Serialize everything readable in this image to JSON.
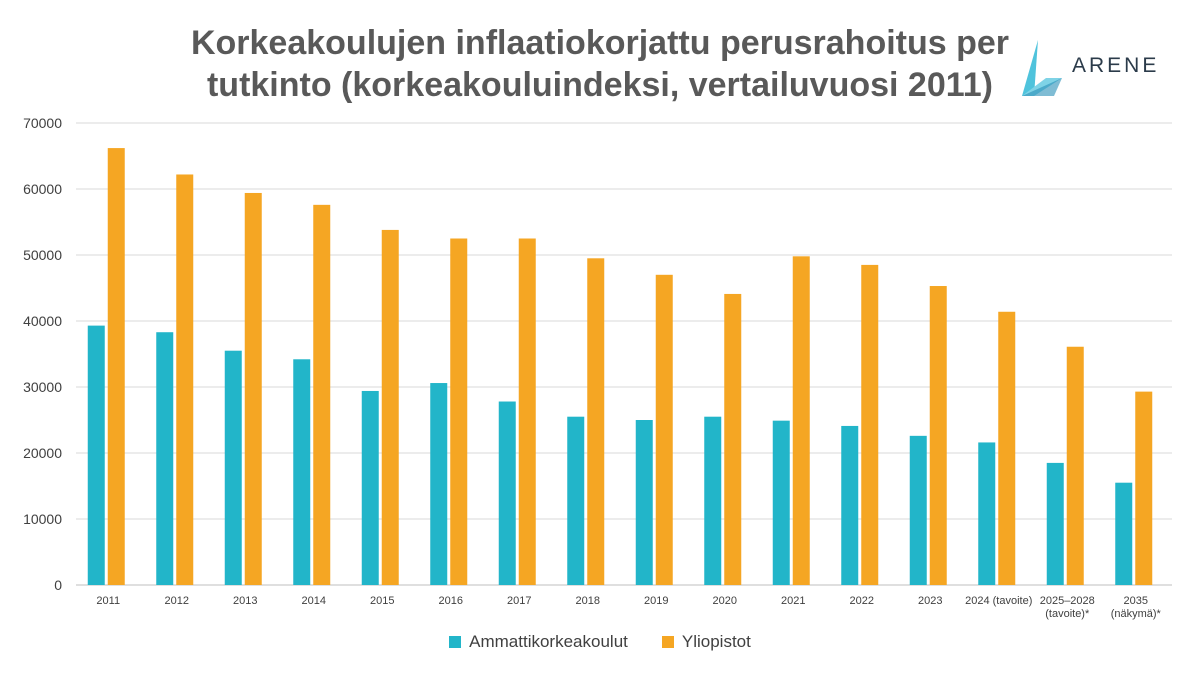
{
  "title": "Korkeakoulujen inflaatiokorjattu perusrahoitus per tutkinto (korkeakouluindeksi, vertailuvuosi 2011)",
  "logo": {
    "text": "ARENE",
    "icon": "arene-logo-icon"
  },
  "colors": {
    "amk": "#22b5c9",
    "yliopisto": "#f5a623",
    "grid": "#d9d9d9"
  },
  "chart_data": {
    "type": "bar",
    "title": "Korkeakoulujen inflaatiokorjattu perusrahoitus per tutkinto (korkeakouluindeksi, vertailuvuosi 2011)",
    "categories": [
      [
        "2011"
      ],
      [
        "2012"
      ],
      [
        "2013"
      ],
      [
        "2014"
      ],
      [
        "2015"
      ],
      [
        "2016"
      ],
      [
        "2017"
      ],
      [
        "2018"
      ],
      [
        "2019"
      ],
      [
        "2020"
      ],
      [
        "2021"
      ],
      [
        "2022"
      ],
      [
        "2023"
      ],
      [
        "2024 (tavoite)"
      ],
      [
        "2025–2028",
        "(tavoite)*"
      ],
      [
        "2035",
        "(näkymä)*"
      ]
    ],
    "series": [
      {
        "name": "Ammattikorkeakoulut",
        "values": [
          39300,
          38300,
          35500,
          34200,
          29400,
          30600,
          27800,
          25500,
          25000,
          25500,
          24900,
          24100,
          22600,
          21600,
          18500,
          15500
        ]
      },
      {
        "name": "Yliopistot",
        "values": [
          66200,
          62200,
          59400,
          57600,
          53800,
          52500,
          52500,
          49500,
          47000,
          44100,
          49800,
          48500,
          45300,
          41400,
          36100,
          29300
        ]
      }
    ],
    "ylim": [
      0,
      70000
    ],
    "yticks": [
      "0",
      "10000",
      "20000",
      "30000",
      "40000",
      "50000",
      "60000",
      "70000"
    ],
    "grid": true,
    "legend": "bottom"
  }
}
